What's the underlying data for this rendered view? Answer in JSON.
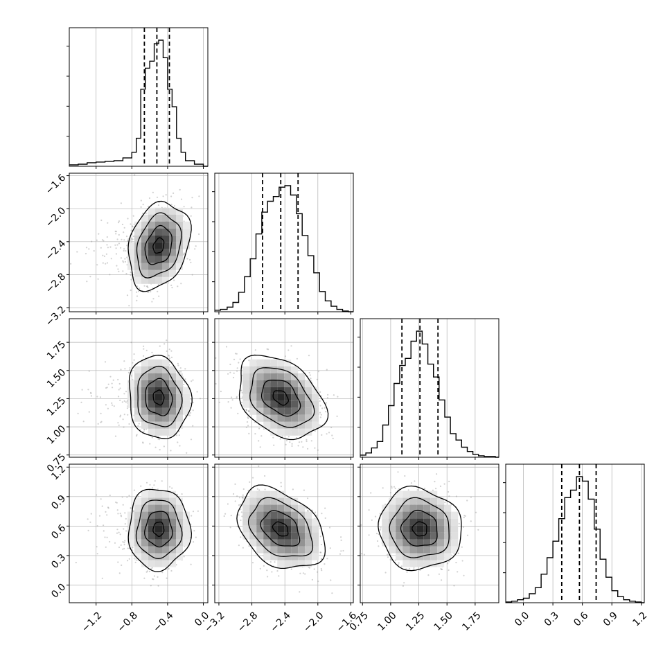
{
  "colors": {
    "line": "#000000",
    "grid": "#b0b0b0",
    "scatter": "#9a9a9a",
    "background": "#ffffff"
  },
  "chart_data": {
    "type": "corner",
    "grid": true,
    "ranges": [
      [
        -1.5,
        0.05
      ],
      [
        -3.25,
        -1.57
      ],
      [
        0.73,
        1.96
      ],
      [
        -0.18,
        1.23
      ]
    ],
    "ticks": [
      [
        "−1.2",
        "−0.8",
        "−0.4",
        "0.0"
      ],
      [
        "−3.2",
        "−2.8",
        "−2.4",
        "−2.0",
        "−1.6"
      ],
      [
        "0.75",
        "1.00",
        "1.25",
        "1.50",
        "1.75"
      ],
      [
        "0.0",
        "0.3",
        "0.6",
        "0.9",
        "1.2"
      ]
    ],
    "tick_values": [
      [
        -1.2,
        -0.8,
        -0.4,
        0.0
      ],
      [
        -3.2,
        -2.8,
        -2.4,
        -2.0,
        -1.6
      ],
      [
        0.75,
        1.0,
        1.25,
        1.5,
        1.75
      ],
      [
        0.0,
        0.3,
        0.6,
        0.9,
        1.2
      ]
    ],
    "quantiles": [
      [
        -0.66,
        -0.52,
        -0.38
      ],
      [
        -2.67,
        -2.45,
        -2.24
      ],
      [
        1.1,
        1.26,
        1.42
      ],
      [
        0.39,
        0.57,
        0.74
      ]
    ],
    "histograms": [
      {
        "edges": [
          -1.5,
          -1.4,
          -1.3,
          -1.2,
          -1.1,
          -1.0,
          -0.9,
          -0.8,
          -0.75,
          -0.7,
          -0.65,
          -0.6,
          -0.55,
          -0.5,
          -0.45,
          -0.4,
          -0.35,
          -0.3,
          -0.25,
          -0.2,
          -0.1,
          0.0,
          0.05
        ],
        "counts": [
          2,
          3,
          5,
          6,
          7,
          8,
          12,
          20,
          40,
          110,
          140,
          150,
          175,
          180,
          155,
          110,
          85,
          40,
          20,
          8,
          3,
          0
        ]
      },
      {
        "edges": [
          -3.25,
          -3.18,
          -3.1,
          -3.03,
          -2.96,
          -2.89,
          -2.82,
          -2.75,
          -2.68,
          -2.61,
          -2.54,
          -2.47,
          -2.4,
          -2.33,
          -2.26,
          -2.19,
          -2.12,
          -2.05,
          -1.98,
          -1.91,
          -1.84,
          -1.77,
          -1.7,
          -1.63,
          -1.57
        ],
        "counts": [
          2,
          3,
          6,
          12,
          25,
          45,
          68,
          100,
          128,
          142,
          148,
          160,
          162,
          150,
          126,
          98,
          72,
          50,
          26,
          14,
          7,
          3,
          1,
          0
        ]
      },
      {
        "edges": [
          0.73,
          0.78,
          0.83,
          0.88,
          0.93,
          0.98,
          1.03,
          1.08,
          1.13,
          1.18,
          1.23,
          1.28,
          1.33,
          1.38,
          1.43,
          1.48,
          1.53,
          1.58,
          1.63,
          1.68,
          1.73,
          1.78,
          1.83,
          1.88,
          1.93,
          1.96
        ],
        "counts": [
          3,
          6,
          13,
          22,
          45,
          72,
          103,
          128,
          138,
          162,
          176,
          158,
          130,
          112,
          80,
          56,
          33,
          24,
          14,
          8,
          4,
          2,
          1,
          1,
          0
        ]
      },
      {
        "edges": [
          -0.18,
          -0.12,
          -0.06,
          0.0,
          0.06,
          0.12,
          0.18,
          0.24,
          0.3,
          0.36,
          0.42,
          0.48,
          0.54,
          0.6,
          0.66,
          0.72,
          0.78,
          0.84,
          0.9,
          0.96,
          1.02,
          1.08,
          1.14,
          1.2,
          1.23
        ],
        "counts": [
          1,
          2,
          4,
          6,
          12,
          20,
          38,
          60,
          82,
          112,
          140,
          150,
          168,
          162,
          138,
          98,
          58,
          34,
          16,
          8,
          4,
          2,
          1,
          0
        ]
      }
    ],
    "pairs": [
      {
        "row": 1,
        "col": 0,
        "x": -0.5,
        "y": -2.45,
        "sx": 0.15,
        "sy": 0.23,
        "rho": 0.25
      },
      {
        "row": 2,
        "col": 0,
        "x": -0.5,
        "y": 1.26,
        "sx": 0.15,
        "sy": 0.16,
        "rho": -0.1
      },
      {
        "row": 2,
        "col": 1,
        "x": -2.45,
        "y": 1.26,
        "sx": 0.23,
        "sy": 0.16,
        "rho": -0.35
      },
      {
        "row": 3,
        "col": 0,
        "x": -0.5,
        "y": 0.57,
        "sx": 0.15,
        "sy": 0.18,
        "rho": 0.0
      },
      {
        "row": 3,
        "col": 1,
        "x": -2.45,
        "y": 0.57,
        "sx": 0.23,
        "sy": 0.18,
        "rho": -0.35
      },
      {
        "row": 3,
        "col": 2,
        "x": 1.26,
        "y": 0.57,
        "sx": 0.16,
        "sy": 0.18,
        "rho": -0.05
      }
    ]
  }
}
